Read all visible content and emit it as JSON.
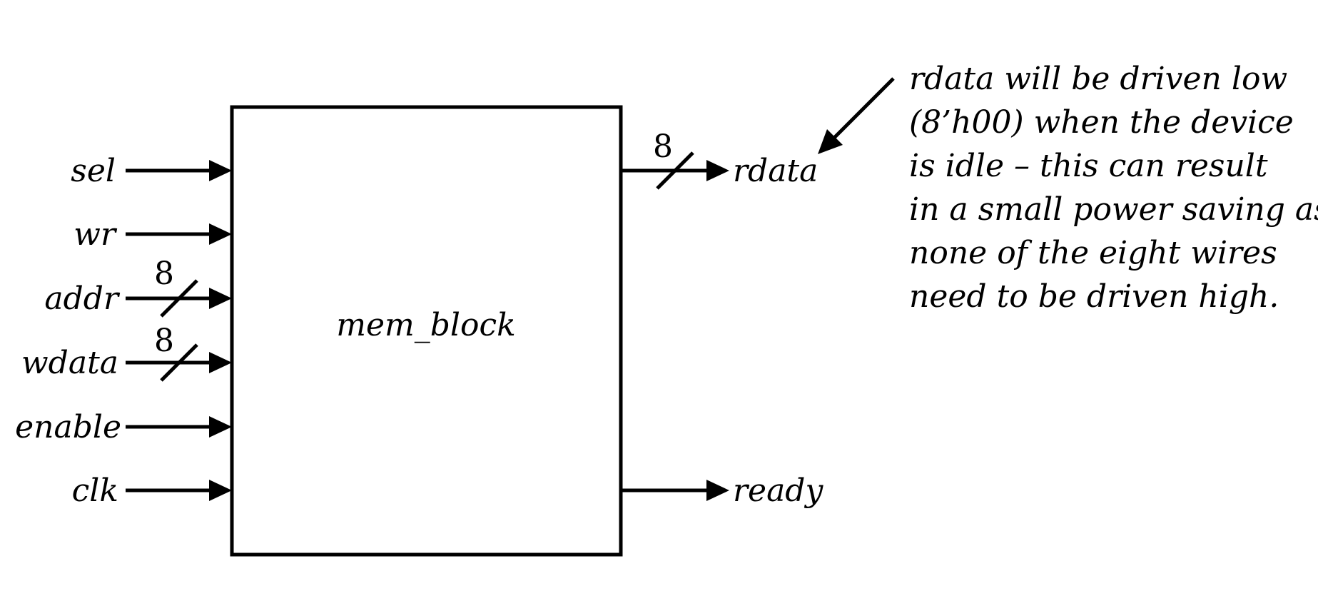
{
  "block": {
    "name": "mem_block"
  },
  "inputs": [
    {
      "label": "sel",
      "width": ""
    },
    {
      "label": "wr",
      "width": ""
    },
    {
      "label": "addr",
      "width": "8"
    },
    {
      "label": "wdata",
      "width": "8"
    },
    {
      "label": "enable",
      "width": ""
    },
    {
      "label": "clk",
      "width": ""
    }
  ],
  "outputs": [
    {
      "label": "rdata",
      "width": "8"
    },
    {
      "label": "ready",
      "width": ""
    }
  ],
  "annotation": {
    "lines": [
      "rdata will be driven low",
      "(8’h00) when the device",
      "is idle – this can result",
      "in a small power saving as",
      "none of  the eight wires",
      "need to be driven high."
    ]
  }
}
